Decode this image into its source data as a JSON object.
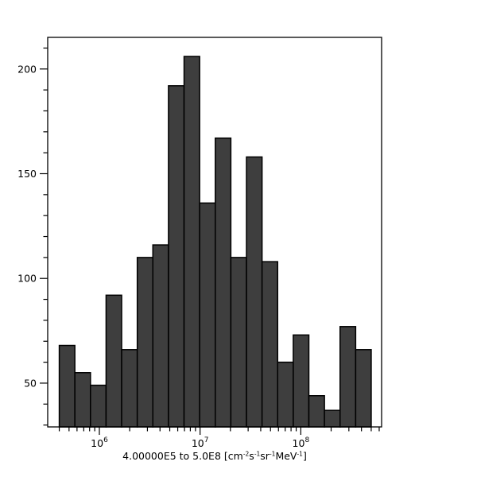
{
  "figure": {
    "background": "#ffffff",
    "axis_color": "#000000",
    "text_color": "#000000",
    "bar_fill": "#3e3e3e",
    "bar_stroke": "#000000"
  },
  "chart_data": {
    "type": "histogram",
    "x_scale": "log",
    "y_scale": "linear",
    "grid": false,
    "legend": false,
    "title": "",
    "xlabel_text": "4.00000E5 to 5.0E8 [cm⁻²s⁻¹sr⁻¹MeV⁻¹]",
    "xlabel_parts": [
      {
        "t": "4.00000E5 to 5.0E8 [cm"
      },
      {
        "sup": "-2"
      },
      {
        "t": "s"
      },
      {
        "sup": "-1"
      },
      {
        "t": "sr"
      },
      {
        "sup": "-1"
      },
      {
        "t": "MeV"
      },
      {
        "sup": "-1"
      },
      {
        "t": "]"
      }
    ],
    "bin_edges": [
      400000,
      571400,
      816300,
      1166000,
      1665000,
      2379000,
      3398000,
      4854000,
      6934000,
      9905000,
      14150000,
      20210000,
      28870000,
      41240000,
      58910000,
      84150000,
      120200000,
      171700000,
      245300000,
      350400000,
      500000000
    ],
    "counts": [
      68,
      55,
      49,
      92,
      66,
      110,
      116,
      192,
      206,
      136,
      167,
      110,
      158,
      108,
      60,
      73,
      44,
      37,
      77,
      66
    ],
    "x_major_ticks": [
      {
        "value": 1000000,
        "label_base": "10",
        "label_exp": "6"
      },
      {
        "value": 10000000,
        "label_base": "10",
        "label_exp": "7"
      },
      {
        "value": 100000000,
        "label_base": "10",
        "label_exp": "8"
      }
    ],
    "y_major_ticks": [
      50,
      100,
      150,
      200
    ],
    "y_minor_step": 10,
    "xlim": [
      307000,
      634000000
    ],
    "ylim": [
      29.1,
      215.1
    ]
  }
}
